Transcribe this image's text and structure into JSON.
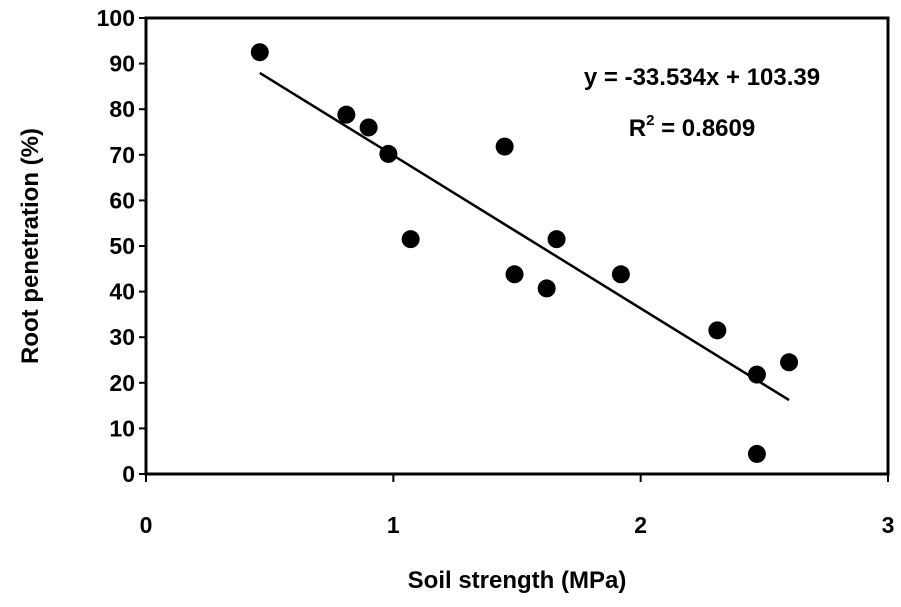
{
  "chart_data": {
    "type": "scatter",
    "title": "",
    "xlabel": "Soil strength (MPa)",
    "ylabel": "Root penetration (%)",
    "xlim": [
      0,
      3
    ],
    "ylim": [
      0,
      100
    ],
    "xticks": [
      "0",
      "1",
      "2",
      "3"
    ],
    "yticks": [
      "0",
      "10",
      "20",
      "30",
      "40",
      "50",
      "60",
      "70",
      "80",
      "90",
      "100"
    ],
    "grid": false,
    "legend": "none",
    "marker_color": "#000000",
    "series": [
      {
        "points": [
          {
            "x": 0.46,
            "y": 92.5
          },
          {
            "x": 0.81,
            "y": 78.8
          },
          {
            "x": 0.9,
            "y": 76.0
          },
          {
            "x": 0.98,
            "y": 70.2
          },
          {
            "x": 1.07,
            "y": 51.5
          },
          {
            "x": 1.45,
            "y": 71.8
          },
          {
            "x": 1.49,
            "y": 43.8
          },
          {
            "x": 1.62,
            "y": 40.7
          },
          {
            "x": 1.66,
            "y": 51.5
          },
          {
            "x": 1.92,
            "y": 43.8
          },
          {
            "x": 2.31,
            "y": 31.5
          },
          {
            "x": 2.47,
            "y": 21.8
          },
          {
            "x": 2.47,
            "y": 4.4
          },
          {
            "x": 2.6,
            "y": 24.5
          }
        ]
      }
    ],
    "trendline": {
      "slope": -33.534,
      "intercept": 103.39,
      "x_range": [
        0.46,
        2.6
      ],
      "equation_text": "y = -33.534x + 103.39",
      "r2_prefix": "R",
      "r2_superscript": "2",
      "r2_suffix": " = 0.8609"
    }
  }
}
